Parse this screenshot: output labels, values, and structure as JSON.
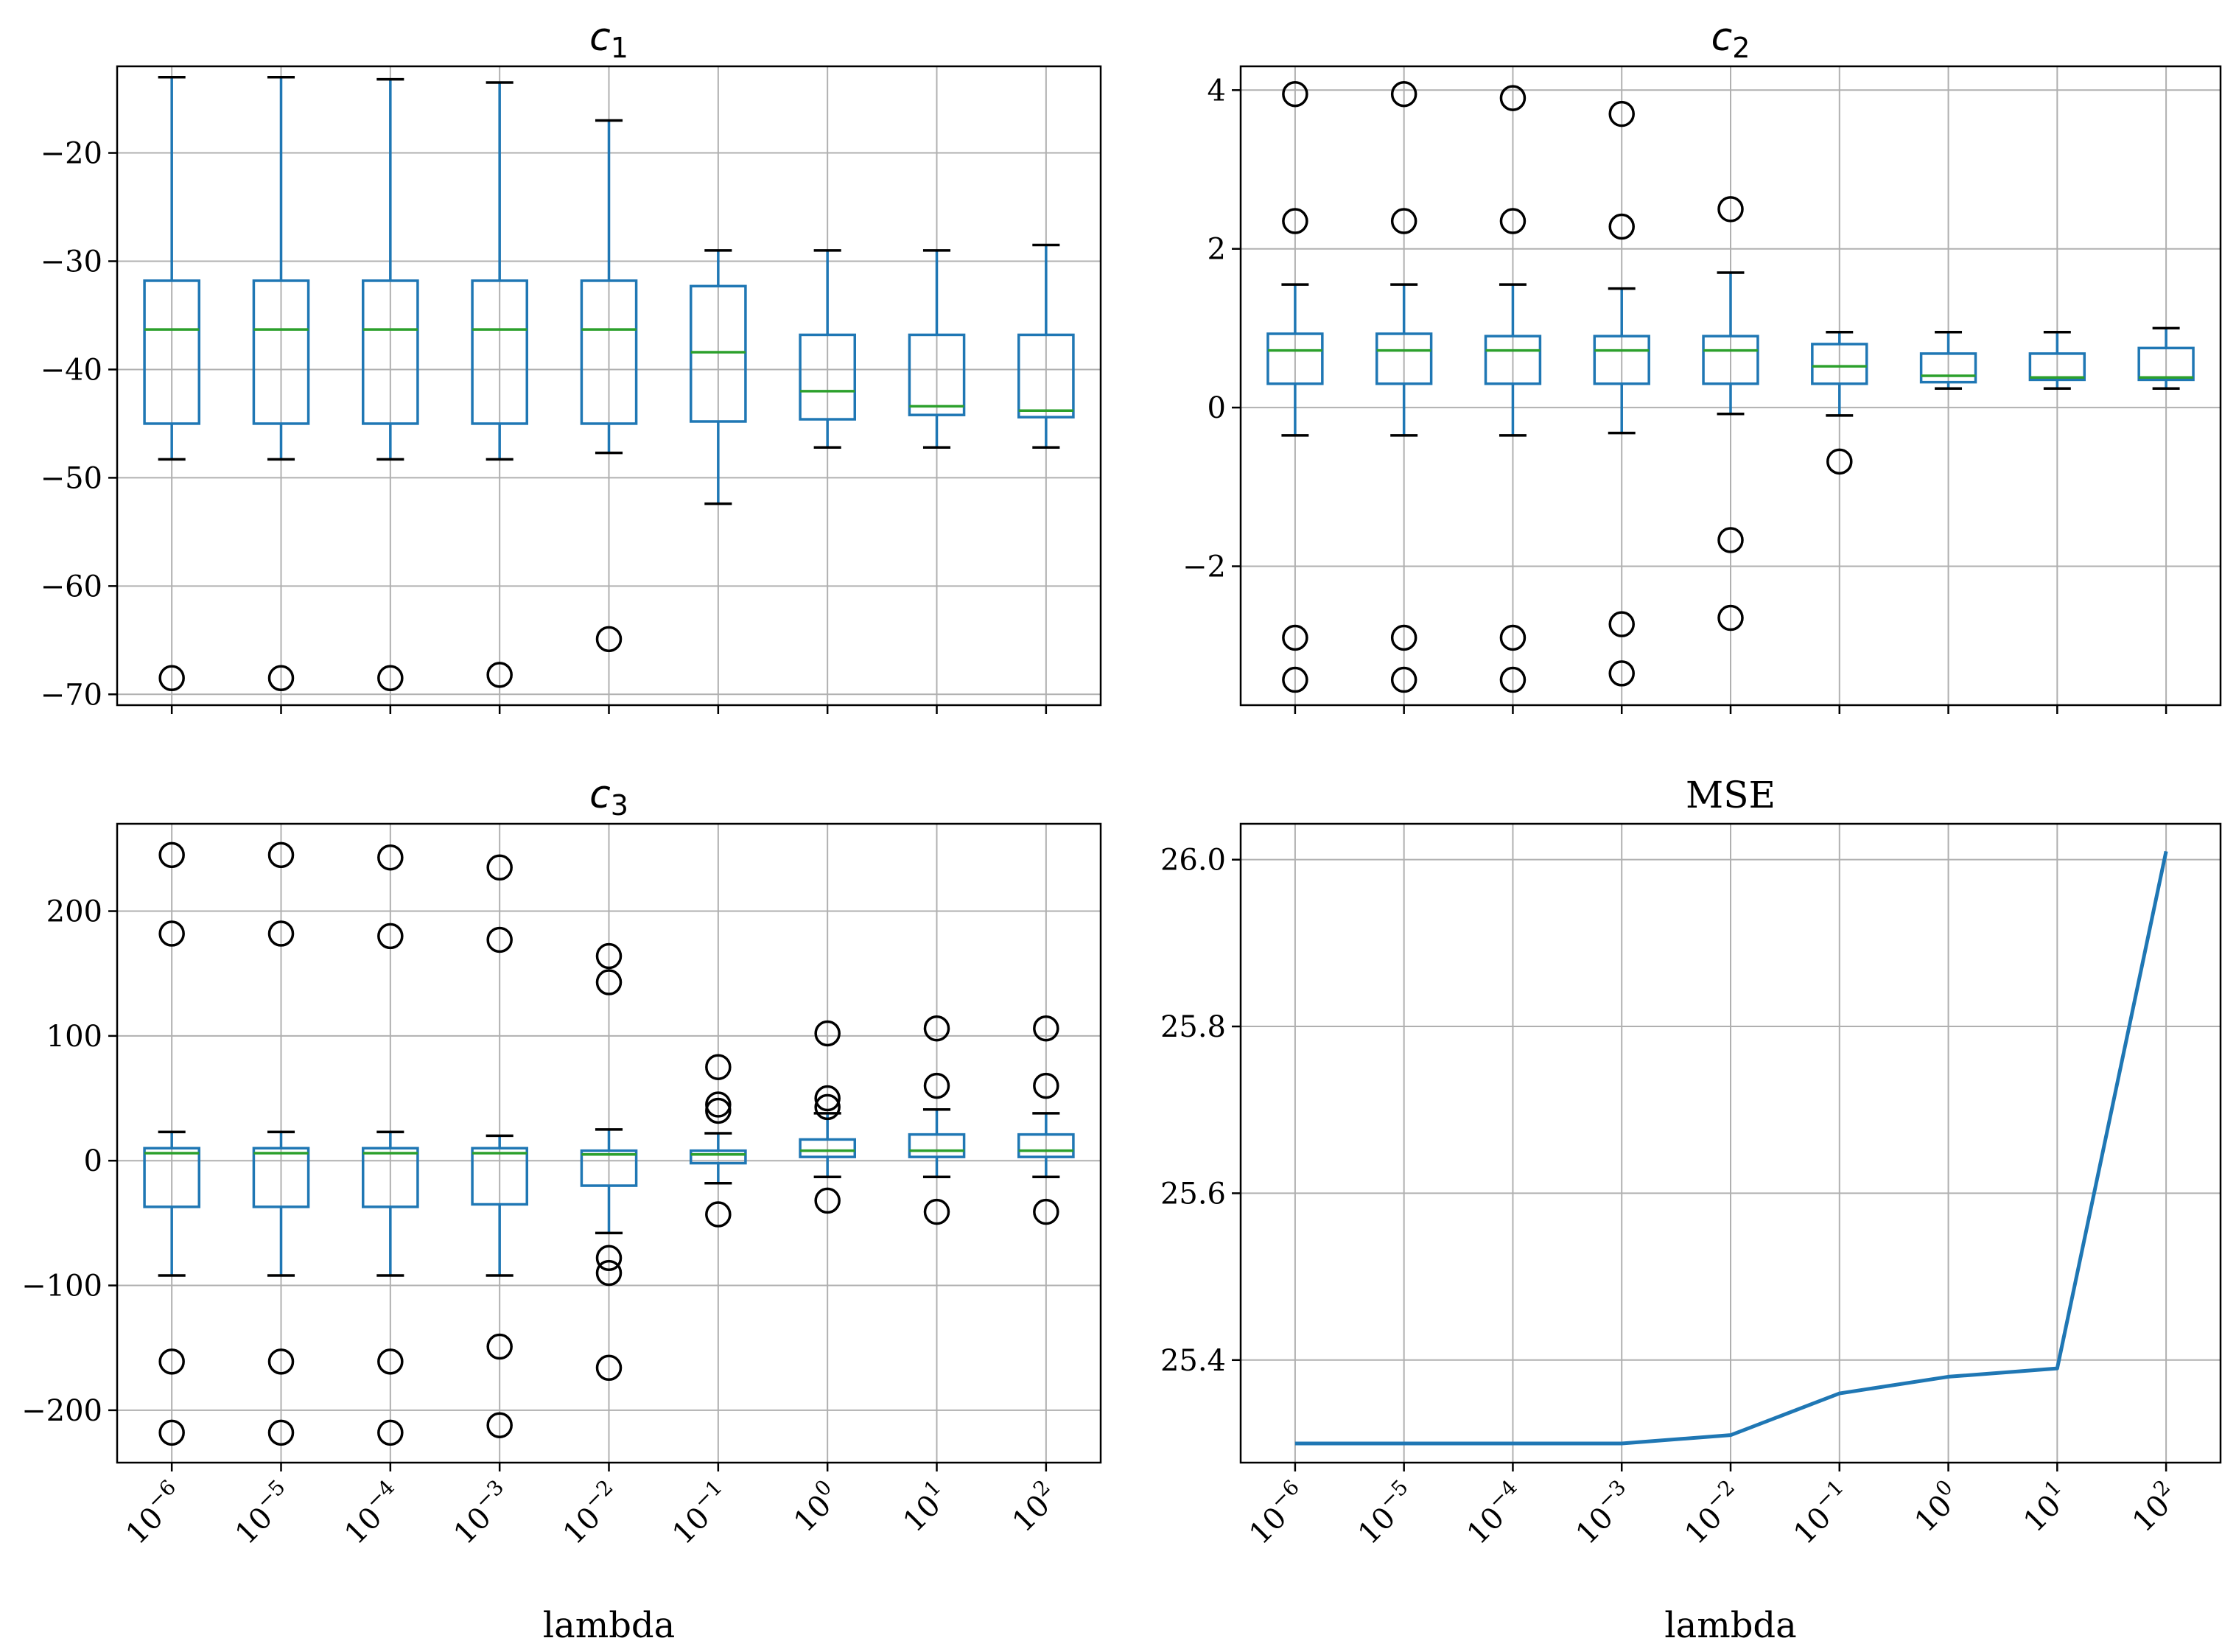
{
  "chart_data": [
    {
      "type": "box",
      "title": "c_1",
      "title_main": "c",
      "title_sub": "1",
      "categories": [
        "10^-6",
        "10^-5",
        "10^-4",
        "10^-3",
        "10^-2",
        "10^-1",
        "10^0",
        "10^1",
        "10^2"
      ],
      "ylim": [
        -71,
        -12
      ],
      "yticks": [
        -70,
        -60,
        -50,
        -40,
        -30,
        -20
      ],
      "ytick_labels": [
        "−70",
        "−60",
        "−50",
        "−40",
        "−30",
        "−20"
      ],
      "xlabel": "",
      "boxes": [
        {
          "whislo": -48.3,
          "q1": -45.0,
          "med": -36.3,
          "q3": -31.8,
          "whishi": -13.0,
          "fliers": [
            -68.5
          ]
        },
        {
          "whislo": -48.3,
          "q1": -45.0,
          "med": -36.3,
          "q3": -31.8,
          "whishi": -13.0,
          "fliers": [
            -68.5
          ]
        },
        {
          "whislo": -48.3,
          "q1": -45.0,
          "med": -36.3,
          "q3": -31.8,
          "whishi": -13.2,
          "fliers": [
            -68.5
          ]
        },
        {
          "whislo": -48.3,
          "q1": -45.0,
          "med": -36.3,
          "q3": -31.8,
          "whishi": -13.5,
          "fliers": [
            -68.2
          ]
        },
        {
          "whislo": -47.7,
          "q1": -45.0,
          "med": -36.3,
          "q3": -31.8,
          "whishi": -17.0,
          "fliers": [
            -64.9
          ]
        },
        {
          "whislo": -52.4,
          "q1": -44.8,
          "med": -38.4,
          "q3": -32.3,
          "whishi": -29.0,
          "fliers": []
        },
        {
          "whislo": -47.2,
          "q1": -44.6,
          "med": -42.0,
          "q3": -36.8,
          "whishi": -29.0,
          "fliers": []
        },
        {
          "whislo": -47.2,
          "q1": -44.2,
          "med": -43.4,
          "q3": -36.8,
          "whishi": -29.0,
          "fliers": []
        },
        {
          "whislo": -47.2,
          "q1": -44.4,
          "med": -43.8,
          "q3": -36.8,
          "whishi": -28.5,
          "fliers": []
        }
      ]
    },
    {
      "type": "box",
      "title": "c_2",
      "title_main": "c",
      "title_sub": "2",
      "categories": [
        "10^-6",
        "10^-5",
        "10^-4",
        "10^-3",
        "10^-2",
        "10^-1",
        "10^0",
        "10^1",
        "10^2"
      ],
      "ylim": [
        -3.75,
        4.3
      ],
      "yticks": [
        -2,
        0,
        2,
        4
      ],
      "ytick_labels": [
        "−2",
        "0",
        "2",
        "4"
      ],
      "xlabel": "",
      "boxes": [
        {
          "whislo": -0.35,
          "q1": 0.3,
          "med": 0.72,
          "q3": 0.93,
          "whishi": 1.55,
          "fliers": [
            3.95,
            2.35,
            -2.9,
            -3.43
          ]
        },
        {
          "whislo": -0.35,
          "q1": 0.3,
          "med": 0.72,
          "q3": 0.93,
          "whishi": 1.55,
          "fliers": [
            3.95,
            2.35,
            -2.9,
            -3.43
          ]
        },
        {
          "whislo": -0.35,
          "q1": 0.3,
          "med": 0.72,
          "q3": 0.9,
          "whishi": 1.55,
          "fliers": [
            3.9,
            2.35,
            -2.9,
            -3.43
          ]
        },
        {
          "whislo": -0.32,
          "q1": 0.3,
          "med": 0.72,
          "q3": 0.9,
          "whishi": 1.5,
          "fliers": [
            3.7,
            2.28,
            -2.73,
            -3.35
          ]
        },
        {
          "whislo": -0.08,
          "q1": 0.3,
          "med": 0.72,
          "q3": 0.9,
          "whishi": 1.7,
          "fliers": [
            2.5,
            -1.67,
            -2.65
          ]
        },
        {
          "whislo": -0.1,
          "q1": 0.3,
          "med": 0.52,
          "q3": 0.8,
          "whishi": 0.95,
          "fliers": [
            -0.68
          ]
        },
        {
          "whislo": 0.24,
          "q1": 0.32,
          "med": 0.4,
          "q3": 0.68,
          "whishi": 0.95,
          "fliers": []
        },
        {
          "whislo": 0.24,
          "q1": 0.35,
          "med": 0.38,
          "q3": 0.68,
          "whishi": 0.95,
          "fliers": []
        },
        {
          "whislo": 0.24,
          "q1": 0.35,
          "med": 0.38,
          "q3": 0.75,
          "whishi": 1.0,
          "fliers": []
        }
      ]
    },
    {
      "type": "box",
      "title": "c_3",
      "title_main": "c",
      "title_sub": "3",
      "categories": [
        "10^-6",
        "10^-5",
        "10^-4",
        "10^-3",
        "10^-2",
        "10^-1",
        "10^0",
        "10^1",
        "10^2"
      ],
      "ylim": [
        -242,
        270
      ],
      "yticks": [
        -200,
        -100,
        0,
        100,
        200
      ],
      "ytick_labels": [
        "−200",
        "−100",
        "0",
        "100",
        "200"
      ],
      "xlabel": "lambda",
      "boxes": [
        {
          "whislo": -92,
          "q1": -37,
          "med": 6,
          "q3": 10,
          "whishi": 23,
          "fliers": [
            245,
            182,
            -161,
            -218
          ]
        },
        {
          "whislo": -92,
          "q1": -37,
          "med": 6,
          "q3": 10,
          "whishi": 23,
          "fliers": [
            245,
            182,
            -161,
            -218
          ]
        },
        {
          "whislo": -92,
          "q1": -37,
          "med": 6,
          "q3": 10,
          "whishi": 23,
          "fliers": [
            243,
            180,
            -161,
            -218
          ]
        },
        {
          "whislo": -92,
          "q1": -35,
          "med": 6,
          "q3": 10,
          "whishi": 20,
          "fliers": [
            235,
            177,
            -149,
            -212
          ]
        },
        {
          "whislo": -58,
          "q1": -20,
          "med": 5,
          "q3": 8,
          "whishi": 25,
          "fliers": [
            164,
            143,
            -78,
            -90,
            -166
          ]
        },
        {
          "whislo": -18,
          "q1": -2,
          "med": 5,
          "q3": 8,
          "whishi": 22,
          "fliers": [
            75,
            45,
            40,
            -43
          ]
        },
        {
          "whislo": -13,
          "q1": 3,
          "med": 8,
          "q3": 17,
          "whishi": 38,
          "fliers": [
            102,
            50,
            43,
            -32
          ]
        },
        {
          "whislo": -13,
          "q1": 3,
          "med": 8,
          "q3": 21,
          "whishi": 41,
          "fliers": [
            106,
            60,
            -41
          ]
        },
        {
          "whislo": -13,
          "q1": 3,
          "med": 8,
          "q3": 21,
          "whishi": 38,
          "fliers": [
            106,
            60,
            -41
          ]
        }
      ]
    },
    {
      "type": "line",
      "title": "MSE",
      "categories": [
        "10^-6",
        "10^-5",
        "10^-4",
        "10^-3",
        "10^-2",
        "10^-1",
        "10^0",
        "10^1",
        "10^2"
      ],
      "values": [
        25.3,
        25.3,
        25.3,
        25.3,
        25.31,
        25.36,
        25.38,
        25.39,
        26.01
      ],
      "ylim": [
        25.277,
        26.043
      ],
      "yticks": [
        25.4,
        25.6,
        25.8,
        26.0
      ],
      "ytick_labels": [
        "25.4",
        "25.6",
        "25.8",
        "26.0"
      ],
      "xlabel": "lambda"
    }
  ],
  "colors": {
    "box": "#1f77b4",
    "median": "#2ca02c",
    "line": "#1f77b4",
    "grid": "#b0b0b0"
  }
}
